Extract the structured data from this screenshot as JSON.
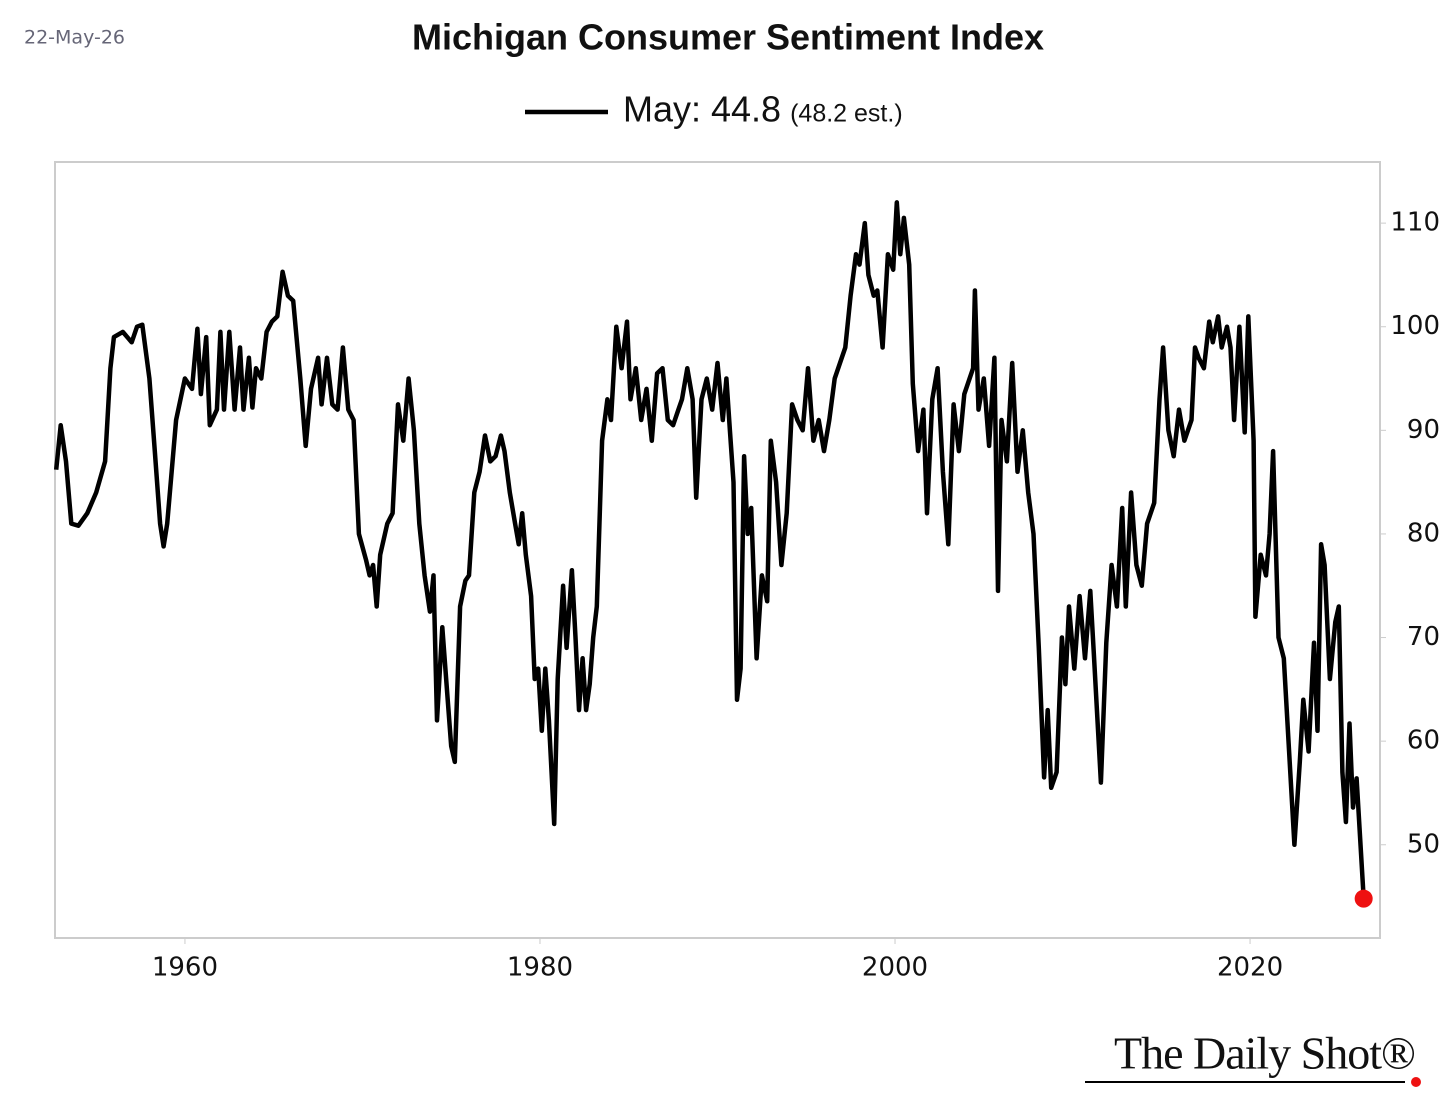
{
  "chart_data": {
    "type": "line",
    "title": "Michigan Consumer Sentiment Index",
    "date": "22-May-26",
    "annotation": "(48.2 est.)",
    "logo": "The Daily Shot®",
    "x": [
      1952.75,
      1953.0,
      1953.3,
      1953.6,
      1954.0,
      1954.5,
      1955.0,
      1955.5,
      1955.8,
      1956.0,
      1956.5,
      1957.0,
      1957.3,
      1957.6,
      1958.0,
      1958.3,
      1958.6,
      1958.8,
      1959.0,
      1959.5,
      1960.0,
      1960.4,
      1960.7,
      1960.9,
      1961.2,
      1961.4,
      1961.8,
      1962.0,
      1962.2,
      1962.5,
      1962.8,
      1963.1,
      1963.3,
      1963.6,
      1963.8,
      1964.0,
      1964.3,
      1964.6,
      1964.9,
      1965.2,
      1965.5,
      1965.8,
      1966.1,
      1966.5,
      1966.8,
      1967.1,
      1967.5,
      1967.7,
      1968.0,
      1968.3,
      1968.6,
      1968.9,
      1969.2,
      1969.5,
      1969.8,
      1970.2,
      1970.4,
      1970.6,
      1970.8,
      1971.0,
      1971.4,
      1971.7,
      1972.0,
      1972.3,
      1972.6,
      1972.9,
      1973.2,
      1973.5,
      1973.8,
      1974.0,
      1974.2,
      1974.5,
      1974.8,
      1975.0,
      1975.2,
      1975.5,
      1975.8,
      1976.0,
      1976.3,
      1976.6,
      1976.9,
      1977.2,
      1977.5,
      1977.8,
      1978.0,
      1978.3,
      1978.6,
      1978.8,
      1979.0,
      1979.2,
      1979.5,
      1979.7,
      1979.9,
      1980.1,
      1980.3,
      1980.5,
      1980.8,
      1981.0,
      1981.3,
      1981.5,
      1981.8,
      1982.0,
      1982.2,
      1982.4,
      1982.6,
      1982.8,
      1983.0,
      1983.2,
      1983.5,
      1983.8,
      1984.0,
      1984.3,
      1984.6,
      1984.9,
      1985.1,
      1985.4,
      1985.7,
      1986.0,
      1986.3,
      1986.6,
      1986.9,
      1987.2,
      1987.5,
      1987.8,
      1988.0,
      1988.3,
      1988.6,
      1988.8,
      1989.1,
      1989.4,
      1989.7,
      1990.0,
      1990.3,
      1990.5,
      1990.7,
      1990.9,
      1991.1,
      1991.3,
      1991.5,
      1991.7,
      1991.9,
      1992.2,
      1992.5,
      1992.8,
      1993.0,
      1993.3,
      1993.6,
      1993.9,
      1994.2,
      1994.5,
      1994.8,
      1995.1,
      1995.4,
      1995.7,
      1996.0,
      1996.3,
      1996.6,
      1996.9,
      1997.2,
      1997.5,
      1997.8,
      1998.0,
      1998.3,
      1998.5,
      1998.8,
      1999.0,
      1999.3,
      1999.6,
      1999.9,
      2000.1,
      2000.3,
      2000.5,
      2000.8,
      2001.0,
      2001.3,
      2001.6,
      2001.8,
      2002.1,
      2002.4,
      2002.7,
      2003.0,
      2003.3,
      2003.6,
      2003.9,
      2004.2,
      2004.4,
      2004.5,
      2004.7,
      2005.0,
      2005.3,
      2005.6,
      2005.8,
      2006.0,
      2006.3,
      2006.6,
      2006.9,
      2007.2,
      2007.5,
      2007.8,
      2008.1,
      2008.4,
      2008.6,
      2008.8,
      2009.1,
      2009.4,
      2009.6,
      2009.8,
      2010.1,
      2010.4,
      2010.7,
      2011.0,
      2011.2,
      2011.6,
      2011.9,
      2012.2,
      2012.5,
      2012.8,
      2013.0,
      2013.3,
      2013.6,
      2013.9,
      2014.2,
      2014.6,
      2014.9,
      2015.1,
      2015.4,
      2015.7,
      2016.0,
      2016.3,
      2016.7,
      2016.9,
      2017.1,
      2017.4,
      2017.7,
      2017.9,
      2018.2,
      2018.4,
      2018.7,
      2018.9,
      2019.1,
      2019.4,
      2019.7,
      2019.9,
      2020.2,
      2020.3,
      2020.6,
      2020.9,
      2021.1,
      2021.3,
      2021.6,
      2021.9,
      2022.2,
      2022.5,
      2022.8,
      2023.0,
      2023.3,
      2023.6,
      2023.8,
      2024.0,
      2024.2,
      2024.5,
      2024.8,
      2025.0,
      2025.2,
      2025.4,
      2025.6,
      2025.8,
      2026.0,
      2026.4
    ],
    "series": [
      {
        "name": "May: 44.8",
        "color": "#000000",
        "values": [
          86.2,
          90.5,
          87,
          81,
          80.8,
          82,
          84,
          87,
          96,
          99,
          99.5,
          98.5,
          100,
          100.2,
          95,
          88,
          81,
          78.8,
          81,
          91,
          95,
          94,
          99.8,
          93.5,
          99,
          90.5,
          92,
          99.5,
          92,
          99.5,
          92,
          98,
          92,
          97,
          92.2,
          96,
          95,
          99.5,
          100.5,
          101,
          105.3,
          103,
          102.5,
          95,
          88.5,
          94,
          97,
          92.5,
          97,
          92.5,
          92,
          98,
          92,
          91,
          80,
          77.5,
          76,
          77,
          73,
          78,
          81,
          82,
          92.5,
          89,
          95,
          90,
          81,
          76,
          72.5,
          76,
          62,
          71,
          64,
          59.5,
          58,
          73,
          75.5,
          76,
          84,
          86,
          89.5,
          87,
          87.5,
          89.5,
          88,
          84,
          81,
          79,
          82,
          78,
          74,
          66,
          67,
          61,
          67,
          62,
          52,
          66,
          75,
          69,
          76.5,
          70,
          63,
          68,
          63,
          65.5,
          70,
          73,
          89,
          93,
          91,
          100,
          96,
          100.5,
          93,
          96,
          91,
          94,
          89,
          95.5,
          96,
          91,
          90.5,
          92,
          93,
          96,
          93,
          83.5,
          93,
          95,
          92,
          96.5,
          91,
          95,
          90,
          85,
          64,
          67,
          87.5,
          80,
          82.5,
          68,
          76,
          73.5,
          89,
          85,
          77,
          82,
          92.5,
          91,
          90,
          96,
          89,
          91,
          88,
          91,
          95,
          96.5,
          98,
          103,
          107,
          106,
          110,
          105,
          103,
          103.5,
          98,
          107,
          105.5,
          112,
          107,
          110.5,
          106,
          94.5,
          88,
          92,
          82,
          93,
          96,
          86,
          79,
          92.5,
          88,
          93.5,
          95,
          96,
          103.5,
          92,
          95,
          88.5,
          97,
          74.5,
          91,
          87,
          96.5,
          86,
          90,
          84,
          80,
          69,
          56.5,
          63,
          55.5,
          57,
          70,
          65.5,
          73,
          67,
          74,
          68,
          74.5,
          68.5,
          56,
          69.5,
          77,
          73,
          82.5,
          73,
          84,
          77,
          75,
          81,
          83,
          93,
          98,
          90,
          87.5,
          92,
          89,
          91,
          98,
          97,
          96,
          100.5,
          98.5,
          101,
          98,
          100,
          98,
          91,
          100,
          89.8,
          101,
          89,
          72,
          78,
          76,
          80,
          88,
          70,
          68,
          59,
          50,
          58,
          64,
          59,
          69.5,
          61,
          79,
          77,
          66,
          71.5,
          73,
          57,
          52.2,
          61.7,
          53.6,
          56.4,
          44.8
        ]
      }
    ],
    "last_point_color": "#ee1111",
    "xlim": [
      1952.68,
      2027.32
    ],
    "xticks": [
      1960,
      1980,
      2000,
      2020
    ],
    "ylim": [
      41,
      115.9
    ],
    "yticks": [
      50,
      60,
      70,
      80,
      90,
      100,
      110
    ],
    "y_axis_side": "right",
    "frame_color": "#cccccc"
  }
}
